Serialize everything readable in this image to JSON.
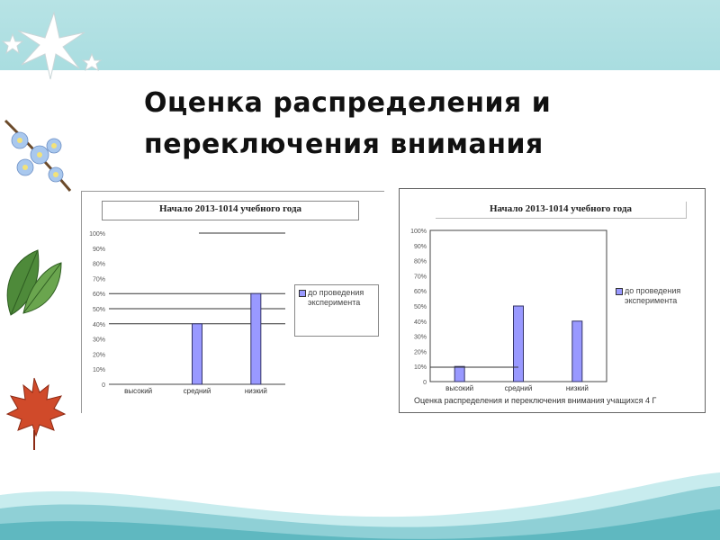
{
  "slide": {
    "title_line1": "Оценка распределения и",
    "title_line2": "переключения внимания"
  },
  "colors": {
    "top_band": "#aadde0",
    "bar_fill": "#9999ff",
    "bar_stroke": "#333366",
    "wave_dark": "#5fb8c0",
    "wave_light": "#c8ecee"
  },
  "decorations": [
    "snowflake-icon",
    "flowers-icon",
    "leaves-icon",
    "maple-leaf-icon"
  ],
  "charts": {
    "left": {
      "title": "Начало 2013-1014 учебного года",
      "legend": [
        "до проведения",
        "эксперимента"
      ]
    },
    "right": {
      "title": "Начало 2013-1014 учебного года",
      "legend": [
        "до проведения",
        "эксперимента"
      ],
      "caption": "Оценка распределения и переключения внимания учащихся 4 Г"
    }
  },
  "chart_data": [
    {
      "type": "bar",
      "title": "Начало 2013-1014 учебного года",
      "categories": [
        "высокий",
        "средний",
        "низкий"
      ],
      "series": [
        {
          "name": "до проведения эксперимента",
          "values": [
            0,
            40,
            60
          ]
        }
      ],
      "yticks": [
        "0",
        "10%",
        "20%",
        "30%",
        "40%",
        "50%",
        "60%",
        "70%",
        "80%",
        "90%",
        "100%"
      ],
      "ylim": [
        0,
        100
      ],
      "legend": "right",
      "grid": true
    },
    {
      "type": "bar",
      "title": "Начало 2013-1014 учебного года",
      "categories": [
        "высокий",
        "средний",
        "низкий"
      ],
      "series": [
        {
          "name": "до проведения эксперимента",
          "values": [
            10,
            50,
            40
          ]
        }
      ],
      "yticks": [
        "0",
        "10%",
        "20%",
        "30%",
        "40%",
        "50%",
        "60%",
        "70%",
        "80%",
        "90%",
        "100%"
      ],
      "ylim": [
        0,
        100
      ],
      "legend": "right",
      "grid": false
    }
  ]
}
